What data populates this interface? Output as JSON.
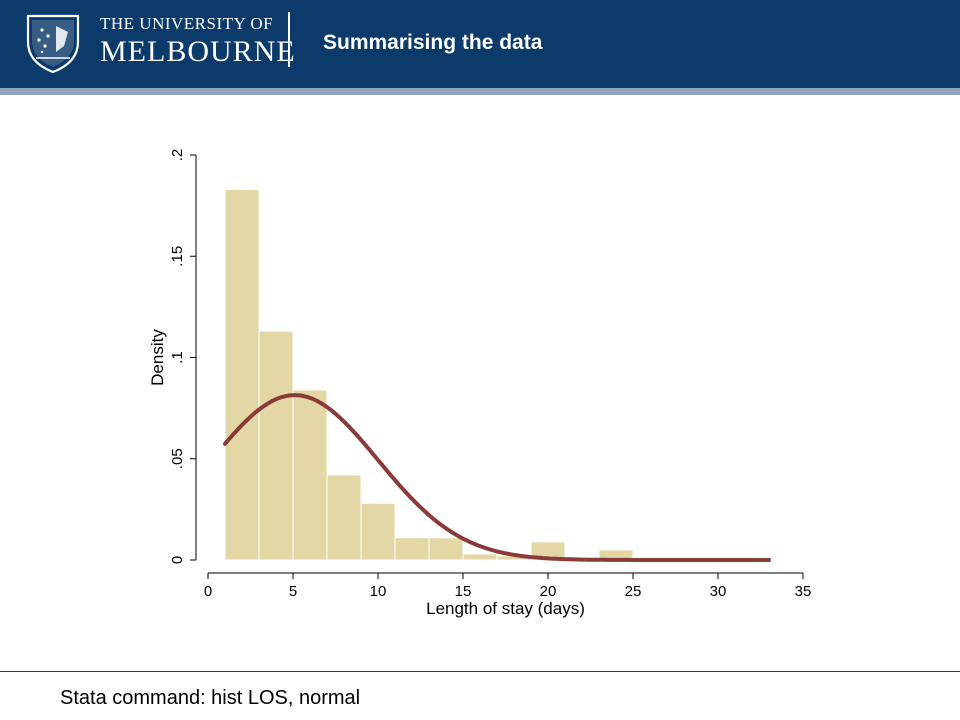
{
  "header": {
    "university_line1": "THE UNIVERSITY OF",
    "university_line2": "MELBOURNE",
    "title": "Summarising the data",
    "logo_icon": "university-crest-icon",
    "background_color": "#0b3a6b",
    "stripe_color": "#8ea4bd"
  },
  "footer": {
    "text": "Stata command: hist LOS, normal"
  },
  "chart_data": {
    "type": "bar",
    "subtype": "histogram with normal density overlay",
    "xlabel": "Length of stay (days)",
    "ylabel": "Density",
    "xlim": [
      0,
      35
    ],
    "ylim": [
      0,
      0.2
    ],
    "xticks": [
      0,
      5,
      10,
      15,
      20,
      25,
      30,
      35
    ],
    "yticks": [
      0,
      0.05,
      0.1,
      0.15,
      0.2
    ],
    "ytick_labels": [
      "0",
      ".05",
      ".1",
      ".15",
      ".2"
    ],
    "bin_start": 1,
    "bin_width": 2,
    "values": [
      0.183,
      0.113,
      0.084,
      0.042,
      0.028,
      0.011,
      0.011,
      0.003,
      0.002,
      0.009,
      0.0,
      0.005,
      0.0,
      0.0,
      0.0,
      0.001
    ],
    "normal_curve": {
      "mean": 5.1,
      "sd": 4.9,
      "x_range": [
        1,
        33
      ]
    },
    "bar_color": "#e3d7a6",
    "bar_edge_color": "#ffffff",
    "curve_color": "#8b3a3a",
    "grid": false
  }
}
